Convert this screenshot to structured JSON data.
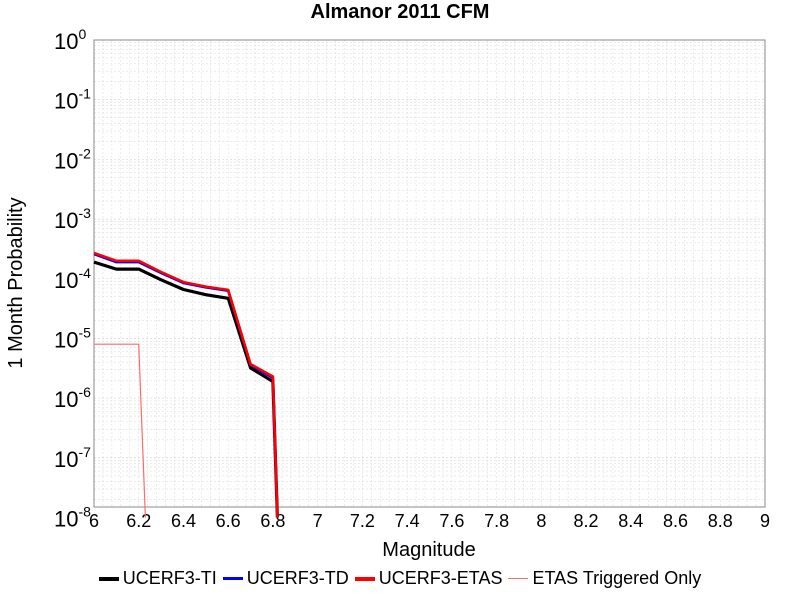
{
  "chart_data": {
    "type": "line",
    "title": "Almanor 2011 CFM",
    "xlabel": "Magnitude",
    "ylabel": "1 Month Probability",
    "xlim": [
      6,
      9
    ],
    "ylim": [
      1.5e-08,
      1
    ],
    "yscale": "log",
    "grid": true,
    "legend_position": "bottom",
    "x_ticks": [
      "6",
      "6.2",
      "6.4",
      "6.6",
      "6.8",
      "7",
      "7.2",
      "7.4",
      "7.6",
      "7.8",
      "8",
      "8.2",
      "8.4",
      "8.6",
      "8.8",
      "9"
    ],
    "y_ticks": [
      {
        "base": "10",
        "exp": "0"
      },
      {
        "base": "10",
        "exp": "-1"
      },
      {
        "base": "10",
        "exp": "-2"
      },
      {
        "base": "10",
        "exp": "-3"
      },
      {
        "base": "10",
        "exp": "-4"
      },
      {
        "base": "10",
        "exp": "-5"
      },
      {
        "base": "10",
        "exp": "-6"
      },
      {
        "base": "10",
        "exp": "-7"
      },
      {
        "base": "10",
        "exp": "-8"
      }
    ],
    "series": [
      {
        "name": "UCERF3-TI",
        "color": "#000000",
        "x": [
          6.0,
          6.1,
          6.2,
          6.3,
          6.4,
          6.5,
          6.6,
          6.7,
          6.8,
          6.82
        ],
        "y": [
          0.00019,
          0.000145,
          0.000145,
          9.6e-05,
          6.6e-05,
          5.4e-05,
          4.7e-05,
          3.2e-06,
          1.9e-06,
          1e-08
        ]
      },
      {
        "name": "UCERF3-TD",
        "color": "#0000ff",
        "x": [
          6.0,
          6.1,
          6.2,
          6.3,
          6.4,
          6.5,
          6.6,
          6.7,
          6.8,
          6.82
        ],
        "y": [
          0.00026,
          0.00019,
          0.00019,
          0.000125,
          8.5e-05,
          7.2e-05,
          6.3e-05,
          3.6e-06,
          2.2e-06,
          1e-08
        ]
      },
      {
        "name": "UCERF3-ETAS",
        "color": "#ff0000",
        "x": [
          6.0,
          6.1,
          6.2,
          6.3,
          6.4,
          6.5,
          6.6,
          6.7,
          6.8,
          6.82
        ],
        "y": [
          0.00027,
          0.0002,
          0.0002,
          0.00013,
          8.8e-05,
          7.4e-05,
          6.5e-05,
          3.7e-06,
          2.3e-06,
          1e-08
        ]
      },
      {
        "name": "ETAS Triggered Only",
        "color": "#ff6a6a",
        "x": [
          6.0,
          6.2,
          6.23
        ],
        "y": [
          8e-06,
          8e-06,
          1e-08
        ]
      }
    ]
  }
}
